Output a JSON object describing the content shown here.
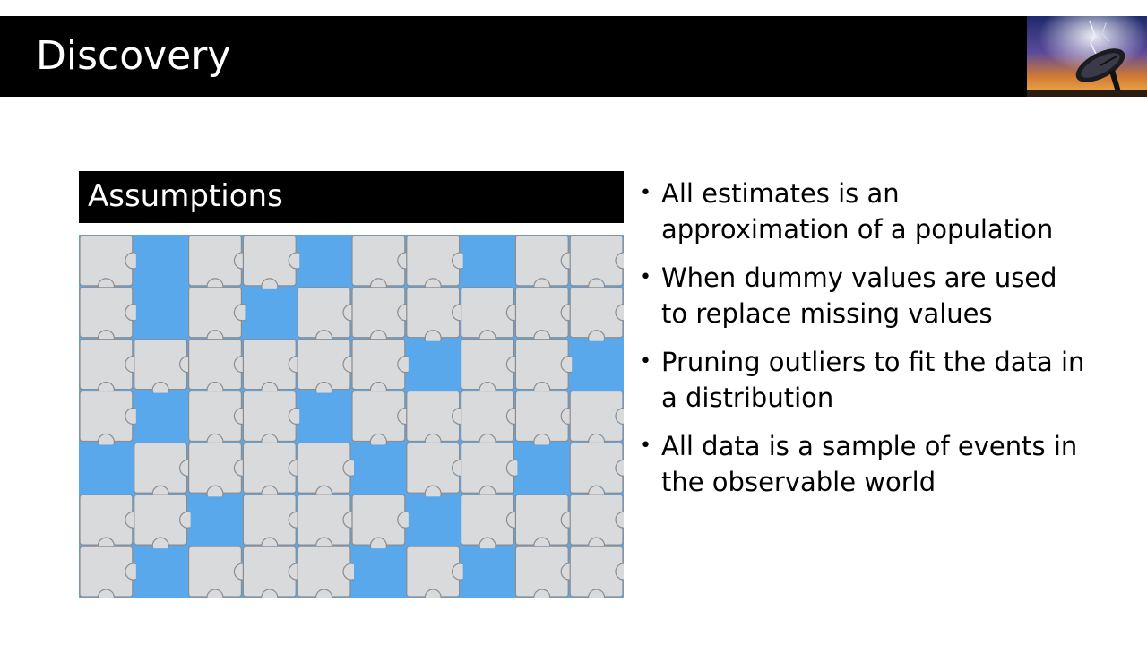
{
  "slide": {
    "title": "Discovery",
    "section_header": "Assumptions",
    "bullets": [
      "All estimates is an approximation of a population",
      "When dummy values are used to replace missing values",
      "Pruning outliers to fit the data in a distribution",
      "All data is a sample of events in the observable world"
    ],
    "bullet_glyph": "•"
  },
  "images": {
    "title_image": "radio-telescope-dish-image",
    "main_image": "jigsaw-puzzle-missing-pieces-image"
  },
  "colors": {
    "title_bar": "#000000",
    "title_text": "#ffffff",
    "puzzle_background": "#5aa8ec",
    "puzzle_piece": "#d9dadc"
  }
}
